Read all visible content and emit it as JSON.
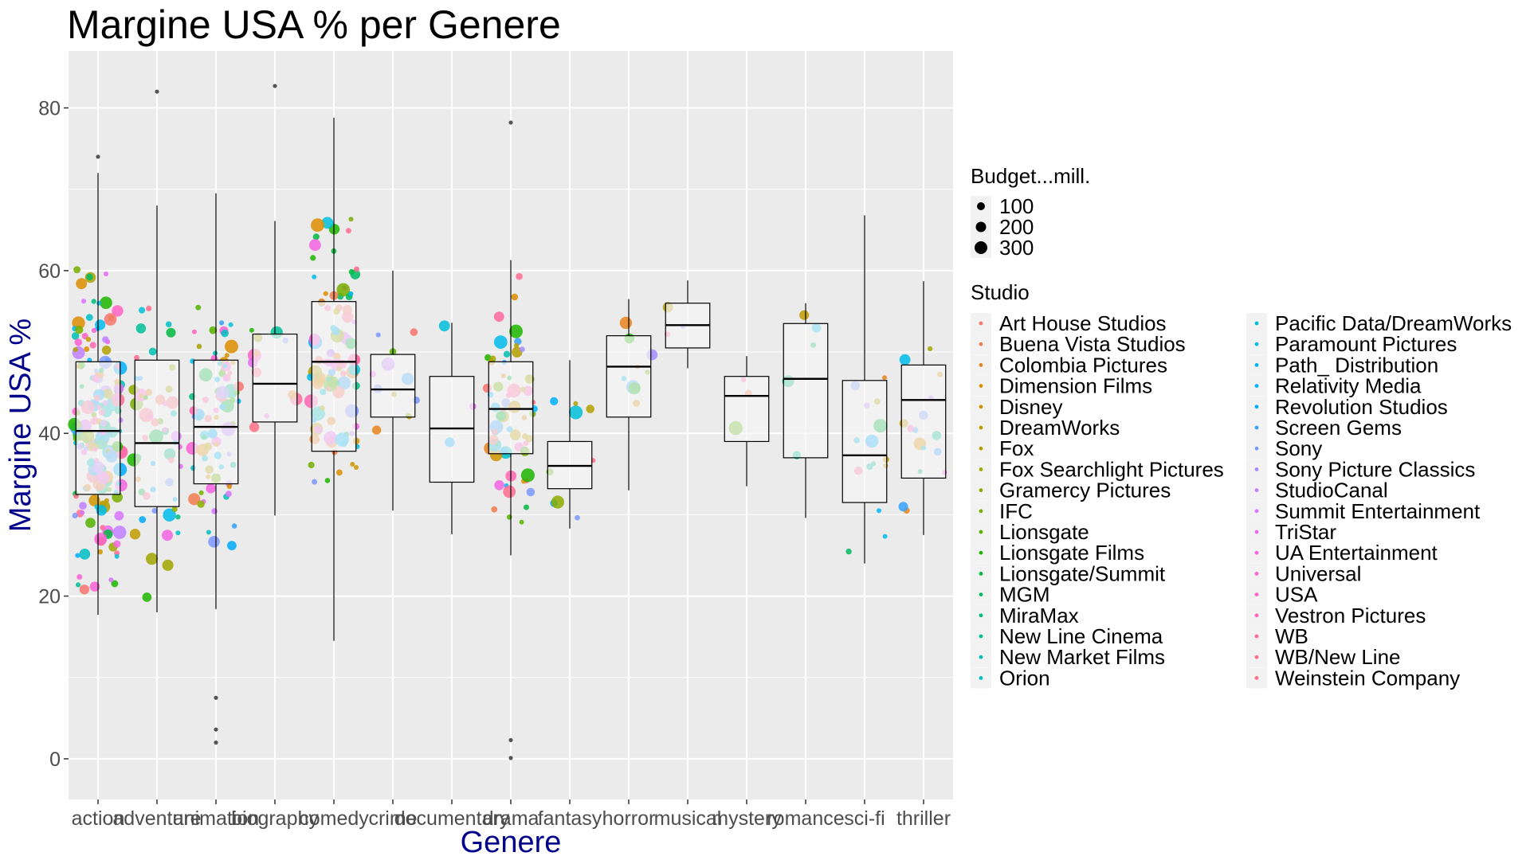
{
  "chart_data": {
    "type": "boxplot",
    "title": "Margine USA % per Genere",
    "xlabel": "Genere",
    "ylabel": "Margine USA %",
    "ylim": [
      -5,
      87
    ],
    "y_ticks": [
      0,
      20,
      40,
      60,
      80
    ],
    "grid": true,
    "legend_position": "right",
    "categories": [
      "action",
      "adventure",
      "animation",
      "biography",
      "comedy",
      "crime",
      "documentary",
      "drama",
      "fantasy",
      "horror",
      "musical",
      "mystery",
      "romance",
      "sci-fi",
      "thriller"
    ],
    "boxes": [
      {
        "category": "action",
        "whisker_low": 17.7,
        "q1": 32.5,
        "median": 40.3,
        "q3": 48.8,
        "whisker_high": 72.0
      },
      {
        "category": "adventure",
        "whisker_low": 18.0,
        "q1": 31.0,
        "median": 38.8,
        "q3": 49.0,
        "whisker_high": 68.0
      },
      {
        "category": "animation",
        "whisker_low": 18.4,
        "q1": 33.8,
        "median": 40.8,
        "q3": 49.0,
        "whisker_high": 69.5
      },
      {
        "category": "biography",
        "whisker_low": 29.9,
        "q1": 41.4,
        "median": 46.1,
        "q3": 52.2,
        "whisker_high": 66.1
      },
      {
        "category": "comedy",
        "whisker_low": 14.5,
        "q1": 37.8,
        "median": 48.8,
        "q3": 56.2,
        "whisker_high": 78.8
      },
      {
        "category": "crime",
        "whisker_low": 30.5,
        "q1": 42.0,
        "median": 45.4,
        "q3": 49.7,
        "whisker_high": 60.0
      },
      {
        "category": "documentary",
        "whisker_low": 27.6,
        "q1": 34.0,
        "median": 40.6,
        "q3": 47.0,
        "whisker_high": 53.6
      },
      {
        "category": "drama",
        "whisker_low": 25.0,
        "q1": 37.5,
        "median": 43.0,
        "q3": 48.8,
        "whisker_high": 61.3
      },
      {
        "category": "fantasy",
        "whisker_low": 28.3,
        "q1": 33.2,
        "median": 36.0,
        "q3": 39.0,
        "whisker_high": 49.0
      },
      {
        "category": "horror",
        "whisker_low": 33.0,
        "q1": 42.0,
        "median": 48.2,
        "q3": 52.0,
        "whisker_high": 56.5
      },
      {
        "category": "musical",
        "whisker_low": 48.0,
        "q1": 50.5,
        "median": 53.3,
        "q3": 56.0,
        "whisker_high": 58.8
      },
      {
        "category": "mystery",
        "whisker_low": 33.5,
        "q1": 39.0,
        "median": 44.6,
        "q3": 47.0,
        "whisker_high": 49.5
      },
      {
        "category": "romance",
        "whisker_low": 29.6,
        "q1": 37.0,
        "median": 46.7,
        "q3": 53.5,
        "whisker_high": 56.0
      },
      {
        "category": "sci-fi",
        "whisker_low": 24.0,
        "q1": 31.5,
        "median": 37.3,
        "q3": 46.5,
        "whisker_high": 66.8
      },
      {
        "category": "thriller",
        "whisker_low": 27.5,
        "q1": 34.5,
        "median": 44.1,
        "q3": 48.4,
        "whisker_high": 58.7
      }
    ],
    "outliers": [
      {
        "category": "action",
        "value": 74.0
      },
      {
        "category": "adventure",
        "value": 82.0
      },
      {
        "category": "animation",
        "value": 7.5
      },
      {
        "category": "animation",
        "value": 3.6
      },
      {
        "category": "animation",
        "value": 2.0
      },
      {
        "category": "biography",
        "value": 82.7
      },
      {
        "category": "drama",
        "value": 78.2
      },
      {
        "category": "drama",
        "value": 2.3
      },
      {
        "category": "drama",
        "value": 0.1
      }
    ],
    "jitter": [
      {
        "category": "action",
        "count": 170,
        "center": 41,
        "spread": 13,
        "low": 17.7,
        "high": 74.2
      },
      {
        "category": "adventure",
        "count": 55,
        "center": 40,
        "spread": 11,
        "low": 18,
        "high": 82
      },
      {
        "category": "animation",
        "count": 80,
        "center": 41,
        "spread": 11,
        "low": 1.5,
        "high": 69.5
      },
      {
        "category": "biography",
        "count": 12,
        "center": 47,
        "spread": 9,
        "low": 29.9,
        "high": 82.7
      },
      {
        "category": "comedy",
        "count": 95,
        "center": 47,
        "spread": 12,
        "low": 14.5,
        "high": 78.8
      },
      {
        "category": "crime",
        "count": 12,
        "center": 45,
        "spread": 8,
        "low": 30.5,
        "high": 60
      },
      {
        "category": "documentary",
        "count": 3,
        "center": 40,
        "spread": 10,
        "low": 27.6,
        "high": 53.6
      },
      {
        "category": "drama",
        "count": 65,
        "center": 43,
        "spread": 10,
        "low": 0,
        "high": 78.4
      },
      {
        "category": "fantasy",
        "count": 9,
        "center": 36,
        "spread": 5,
        "low": 28.3,
        "high": 49
      },
      {
        "category": "horror",
        "count": 9,
        "center": 47,
        "spread": 6,
        "low": 33,
        "high": 56.5
      },
      {
        "category": "musical",
        "count": 3,
        "center": 53,
        "spread": 4,
        "low": 47.8,
        "high": 58.8
      },
      {
        "category": "mystery",
        "count": 3,
        "center": 43,
        "spread": 6,
        "low": 33.5,
        "high": 49.5
      },
      {
        "category": "romance",
        "count": 5,
        "center": 46,
        "spread": 8,
        "low": 29.6,
        "high": 56
      },
      {
        "category": "sci-fi",
        "count": 16,
        "center": 38,
        "spread": 10,
        "low": 24,
        "high": 66.8
      },
      {
        "category": "thriller",
        "count": 16,
        "center": 42,
        "spread": 9,
        "low": 27.5,
        "high": 58.7
      }
    ],
    "size_legend": {
      "title": "Budget...mill.",
      "entries": [
        {
          "label": "100",
          "value": 100
        },
        {
          "label": "200",
          "value": 200
        },
        {
          "label": "300",
          "value": 300
        }
      ]
    },
    "color_legend": {
      "title": "Studio",
      "entries": [
        {
          "label": "Art House Studios",
          "color": "#F8766D"
        },
        {
          "label": "Buena Vista Studios",
          "color": "#F17D50"
        },
        {
          "label": "Colombia Pictures",
          "color": "#E7851E"
        },
        {
          "label": "Dimension Films",
          "color": "#DD8D00"
        },
        {
          "label": "Disney",
          "color": "#D09400"
        },
        {
          "label": "DreamWorks",
          "color": "#C29B00"
        },
        {
          "label": "Fox",
          "color": "#B3A000"
        },
        {
          "label": "Fox Searchlight Pictures",
          "color": "#A1A600"
        },
        {
          "label": "Gramercy Pictures",
          "color": "#8DAB00"
        },
        {
          "label": "IFC",
          "color": "#76AF00"
        },
        {
          "label": "Lionsgate",
          "color": "#57B300"
        },
        {
          "label": "Lionsgate Films",
          "color": "#1DB600"
        },
        {
          "label": "Lionsgate/Summit",
          "color": "#00B93E"
        },
        {
          "label": "MGM",
          "color": "#00BB62"
        },
        {
          "label": "MiraMax",
          "color": "#00BD7F"
        },
        {
          "label": "New Line Cinema",
          "color": "#00BF99"
        },
        {
          "label": "New Market Films",
          "color": "#00C0B1"
        },
        {
          "label": "Orion",
          "color": "#00C0C6"
        },
        {
          "label": "Pacific Data/DreamWorks",
          "color": "#00BFDA"
        },
        {
          "label": "Paramount Pictures",
          "color": "#00BCEB"
        },
        {
          "label": "Path_ Distribution",
          "color": "#00B8F9"
        },
        {
          "label": "Relativity Media",
          "color": "#00B2FF"
        },
        {
          "label": "Revolution Studios",
          "color": "#00ABFD"
        },
        {
          "label": "Screen Gems",
          "color": "#35A2FF"
        },
        {
          "label": "Sony",
          "color": "#7C98FF"
        },
        {
          "label": "Sony Picture Classics",
          "color": "#A58DFF"
        },
        {
          "label": "StudioCanal",
          "color": "#C280FF"
        },
        {
          "label": "Summit Entertainment",
          "color": "#D874FD"
        },
        {
          "label": "TriStar",
          "color": "#E86AF0"
        },
        {
          "label": "UA Entertainment",
          "color": "#F464E3"
        },
        {
          "label": "Universal",
          "color": "#FC61D5"
        },
        {
          "label": "USA",
          "color": "#FF62C4"
        },
        {
          "label": "Vestron Pictures",
          "color": "#FF65B2"
        },
        {
          "label": "WB",
          "color": "#FF6A9E"
        },
        {
          "label": "WB/New Line",
          "color": "#FF6C91"
        },
        {
          "label": "Weinstein Company",
          "color": "#FC7185"
        }
      ]
    },
    "colors": {
      "panel_background": "#EBEBEB",
      "grid": "#FFFFFF",
      "box_fill": "#F5F5F5",
      "box_line": "#000000",
      "axis_title": "#00008B",
      "tick_text": "#4D4D4D"
    }
  }
}
